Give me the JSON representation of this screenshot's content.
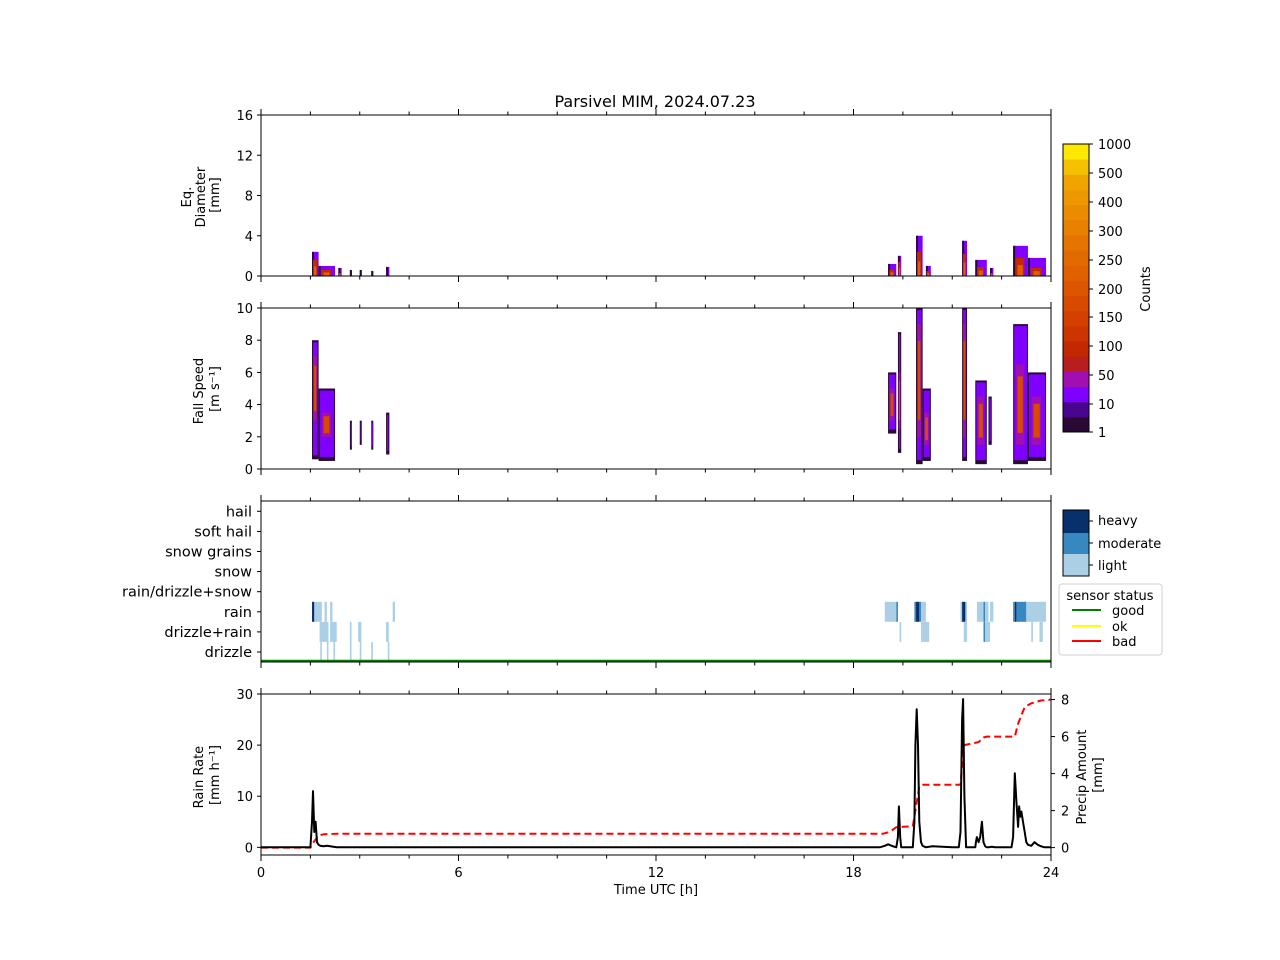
{
  "title": "Parsivel MIM, 2024.07.23",
  "chart_data": [
    {
      "type": "heatmap",
      "panel": "diameter",
      "ylabel": [
        "Eq.",
        "Diameter",
        "[mm]"
      ],
      "ylim": [
        0,
        16
      ],
      "yticks": [
        0,
        4,
        8,
        12,
        16
      ],
      "xlim": [
        0,
        24
      ],
      "events": [
        {
          "t0": 1.55,
          "t1": 1.75,
          "top": 2.4,
          "core": 1.6
        },
        {
          "t0": 1.75,
          "t1": 2.25,
          "top": 1.0,
          "core": 0.6
        },
        {
          "t0": 2.35,
          "t1": 2.45,
          "top": 0.8,
          "core": 0.3
        },
        {
          "t0": 2.7,
          "t1": 2.75,
          "top": 0.6,
          "core": 0
        },
        {
          "t0": 3.0,
          "t1": 3.05,
          "top": 0.6,
          "core": 0
        },
        {
          "t0": 3.35,
          "t1": 3.4,
          "top": 0.5,
          "core": 0
        },
        {
          "t0": 3.8,
          "t1": 3.9,
          "top": 0.9,
          "core": 0
        },
        {
          "t0": 19.05,
          "t1": 19.3,
          "top": 1.2,
          "core": 0.6
        },
        {
          "t0": 19.35,
          "t1": 19.45,
          "top": 2.0,
          "core": 1.4
        },
        {
          "t0": 19.9,
          "t1": 20.1,
          "top": 4.0,
          "core": 2.4
        },
        {
          "t0": 20.2,
          "t1": 20.35,
          "top": 1.0,
          "core": 0.5
        },
        {
          "t0": 21.3,
          "t1": 21.45,
          "top": 3.5,
          "core": 2.2
        },
        {
          "t0": 21.7,
          "t1": 22.05,
          "top": 1.6,
          "core": 0.9
        },
        {
          "t0": 22.15,
          "t1": 22.25,
          "top": 0.8,
          "core": 0.3
        },
        {
          "t0": 22.85,
          "t1": 23.3,
          "top": 3.0,
          "core": 1.8
        },
        {
          "t0": 23.3,
          "t1": 23.85,
          "top": 1.8,
          "core": 0.8
        }
      ]
    },
    {
      "type": "heatmap",
      "panel": "fall_speed",
      "ylabel": [
        "Fall Speed",
        "[m s⁻¹]"
      ],
      "ylim": [
        0,
        10
      ],
      "yticks": [
        0,
        2,
        4,
        6,
        8,
        10
      ],
      "xlim": [
        0,
        24
      ],
      "events": [
        {
          "t0": 1.55,
          "t1": 1.75,
          "lo": 0.6,
          "hi": 8.0,
          "core": [
            3.0,
            7.0
          ]
        },
        {
          "t0": 1.75,
          "t1": 2.25,
          "lo": 0.5,
          "hi": 5.0,
          "core": [
            2.0,
            3.5
          ]
        },
        {
          "t0": 2.7,
          "t1": 2.75,
          "lo": 1.2,
          "hi": 3.0,
          "core": null
        },
        {
          "t0": 3.0,
          "t1": 3.05,
          "lo": 1.5,
          "hi": 3.0,
          "core": null
        },
        {
          "t0": 3.35,
          "t1": 3.4,
          "lo": 1.2,
          "hi": 3.0,
          "core": null
        },
        {
          "t0": 3.8,
          "t1": 3.9,
          "lo": 0.9,
          "hi": 3.5,
          "core": null
        },
        {
          "t0": 19.05,
          "t1": 19.3,
          "lo": 2.2,
          "hi": 6.0,
          "core": [
            3.0,
            5.0
          ]
        },
        {
          "t0": 19.35,
          "t1": 19.45,
          "lo": 1.0,
          "hi": 8.5,
          "core": [
            2.5,
            6.0
          ]
        },
        {
          "t0": 19.9,
          "t1": 20.1,
          "lo": 0.3,
          "hi": 10.0,
          "core": [
            2.0,
            9.0
          ]
        },
        {
          "t0": 20.1,
          "t1": 20.35,
          "lo": 0.5,
          "hi": 5.0,
          "core": [
            1.5,
            3.5
          ]
        },
        {
          "t0": 21.3,
          "t1": 21.45,
          "lo": 0.5,
          "hi": 10.0,
          "core": [
            2.0,
            9.0
          ]
        },
        {
          "t0": 21.7,
          "t1": 22.05,
          "lo": 0.3,
          "hi": 5.5,
          "core": [
            1.5,
            4.5
          ]
        },
        {
          "t0": 22.1,
          "t1": 22.2,
          "lo": 1.5,
          "hi": 4.5,
          "core": null
        },
        {
          "t0": 22.85,
          "t1": 23.3,
          "lo": 0.3,
          "hi": 9.0,
          "core": [
            1.5,
            6.5
          ]
        },
        {
          "t0": 23.3,
          "t1": 23.85,
          "lo": 0.5,
          "hi": 6.0,
          "core": [
            1.5,
            4.5
          ]
        }
      ]
    },
    {
      "type": "heatmap",
      "panel": "precip_type",
      "categories": [
        "drizzle",
        "drizzle+rain",
        "rain",
        "rain/drizzle+snow",
        "snow",
        "snow grains",
        "soft hail",
        "hail"
      ],
      "xlim": [
        0,
        24
      ],
      "intensity_legend": {
        "labels": [
          "heavy",
          "moderate",
          "light"
        ],
        "colors": [
          "#08306b",
          "#3787c0",
          "#abd0e6"
        ]
      },
      "status_legend": {
        "title": "sensor status",
        "items": [
          {
            "label": "good",
            "color": "#008000"
          },
          {
            "label": "ok",
            "color": "#ffff00"
          },
          {
            "label": "bad",
            "color": "#ff0000"
          }
        ]
      },
      "status_line": {
        "status": "good",
        "t0": 0,
        "t1": 24
      },
      "cells": [
        {
          "cat": "rain",
          "t0": 1.55,
          "t1": 1.62,
          "level": "heavy"
        },
        {
          "cat": "rain",
          "t0": 1.62,
          "t1": 1.85,
          "level": "light"
        },
        {
          "cat": "rain",
          "t0": 1.93,
          "t1": 2.0,
          "level": "light"
        },
        {
          "cat": "rain",
          "t0": 2.1,
          "t1": 2.17,
          "level": "light"
        },
        {
          "cat": "rain",
          "t0": 4.0,
          "t1": 4.07,
          "level": "light"
        },
        {
          "cat": "drizzle+rain",
          "t0": 1.78,
          "t1": 2.05,
          "level": "light"
        },
        {
          "cat": "drizzle+rain",
          "t0": 2.1,
          "t1": 2.3,
          "level": "light"
        },
        {
          "cat": "drizzle+rain",
          "t0": 2.7,
          "t1": 2.75,
          "level": "light"
        },
        {
          "cat": "drizzle+rain",
          "t0": 2.95,
          "t1": 3.05,
          "level": "light"
        },
        {
          "cat": "drizzle+rain",
          "t0": 3.8,
          "t1": 3.88,
          "level": "light"
        },
        {
          "cat": "drizzle",
          "t0": 1.8,
          "t1": 1.85,
          "level": "light"
        },
        {
          "cat": "drizzle",
          "t0": 2.0,
          "t1": 2.05,
          "level": "light"
        },
        {
          "cat": "drizzle",
          "t0": 2.2,
          "t1": 2.25,
          "level": "light"
        },
        {
          "cat": "drizzle",
          "t0": 2.7,
          "t1": 2.75,
          "level": "light"
        },
        {
          "cat": "drizzle",
          "t0": 3.0,
          "t1": 3.05,
          "level": "light"
        },
        {
          "cat": "drizzle",
          "t0": 3.35,
          "t1": 3.4,
          "level": "light"
        },
        {
          "cat": "drizzle",
          "t0": 3.85,
          "t1": 3.9,
          "level": "light"
        },
        {
          "cat": "rain",
          "t0": 18.95,
          "t1": 19.3,
          "level": "light"
        },
        {
          "cat": "rain",
          "t0": 19.3,
          "t1": 19.35,
          "level": "moderate"
        },
        {
          "cat": "rain",
          "t0": 19.85,
          "t1": 19.9,
          "level": "moderate"
        },
        {
          "cat": "rain",
          "t0": 19.9,
          "t1": 20.0,
          "level": "heavy"
        },
        {
          "cat": "rain",
          "t0": 20.0,
          "t1": 20.05,
          "level": "moderate"
        },
        {
          "cat": "rain",
          "t0": 20.05,
          "t1": 20.2,
          "level": "light"
        },
        {
          "cat": "rain",
          "t0": 21.25,
          "t1": 21.3,
          "level": "light"
        },
        {
          "cat": "rain",
          "t0": 21.3,
          "t1": 21.4,
          "level": "heavy"
        },
        {
          "cat": "rain",
          "t0": 21.4,
          "t1": 21.45,
          "level": "light"
        },
        {
          "cat": "rain",
          "t0": 21.75,
          "t1": 21.95,
          "level": "light"
        },
        {
          "cat": "rain",
          "t0": 21.95,
          "t1": 22.0,
          "level": "moderate"
        },
        {
          "cat": "rain",
          "t0": 22.0,
          "t1": 22.1,
          "level": "light"
        },
        {
          "cat": "rain",
          "t0": 22.15,
          "t1": 22.25,
          "level": "light"
        },
        {
          "cat": "rain",
          "t0": 22.85,
          "t1": 22.9,
          "level": "moderate"
        },
        {
          "cat": "rain",
          "t0": 22.9,
          "t1": 22.95,
          "level": "heavy"
        },
        {
          "cat": "rain",
          "t0": 22.95,
          "t1": 23.25,
          "level": "moderate"
        },
        {
          "cat": "rain",
          "t0": 23.25,
          "t1": 23.85,
          "level": "light"
        },
        {
          "cat": "drizzle+rain",
          "t0": 19.4,
          "t1": 19.45,
          "level": "light"
        },
        {
          "cat": "drizzle+rain",
          "t0": 20.05,
          "t1": 20.1,
          "level": "light"
        },
        {
          "cat": "drizzle+rain",
          "t0": 20.1,
          "t1": 20.3,
          "level": "light"
        },
        {
          "cat": "drizzle+rain",
          "t0": 21.35,
          "t1": 21.45,
          "level": "light"
        },
        {
          "cat": "drizzle+rain",
          "t0": 21.95,
          "t1": 22.0,
          "level": "moderate"
        },
        {
          "cat": "drizzle+rain",
          "t0": 22.0,
          "t1": 22.15,
          "level": "light"
        },
        {
          "cat": "drizzle+rain",
          "t0": 23.4,
          "t1": 23.45,
          "level": "light"
        },
        {
          "cat": "drizzle+rain",
          "t0": 23.65,
          "t1": 23.75,
          "level": "light"
        }
      ]
    },
    {
      "type": "line",
      "panel": "rain_rate",
      "xlabel": "Time UTC [h]",
      "xlim": [
        0,
        24
      ],
      "xticks": [
        0,
        6,
        12,
        18,
        24
      ],
      "ylabel": [
        "Rain Rate",
        "[mm h⁻¹]"
      ],
      "ylim": [
        -1.5,
        30
      ],
      "yticks": [
        0,
        10,
        20,
        30
      ],
      "y2label": [
        "Precip Amount",
        "[mm]"
      ],
      "y2lim": [
        -0.4,
        8.3
      ],
      "y2ticks": [
        0,
        2,
        4,
        6,
        8
      ],
      "series": [
        {
          "name": "Rain Rate",
          "axis": "left",
          "color": "#000000",
          "style": "solid",
          "x": [
            0,
            1.5,
            1.55,
            1.58,
            1.62,
            1.66,
            1.7,
            1.75,
            1.8,
            1.9,
            2.0,
            2.1,
            2.2,
            2.3,
            2.5,
            18.8,
            18.95,
            19.05,
            19.2,
            19.3,
            19.35,
            19.38,
            19.42,
            19.45,
            19.5,
            19.8,
            19.85,
            19.88,
            19.92,
            19.96,
            20.0,
            20.05,
            20.1,
            20.2,
            20.4,
            21.0,
            21.2,
            21.25,
            21.3,
            21.33,
            21.37,
            21.42,
            21.5,
            21.7,
            21.72,
            21.75,
            21.8,
            21.85,
            21.9,
            21.95,
            22.0,
            22.05,
            22.1,
            22.2,
            22.3,
            22.8,
            22.85,
            22.9,
            22.95,
            23.0,
            23.03,
            23.07,
            23.1,
            23.15,
            23.2,
            23.25,
            23.3,
            23.4,
            23.5,
            23.6,
            23.7,
            23.8,
            24.0
          ],
          "values": [
            0,
            0,
            5,
            11,
            3,
            5,
            1,
            0.5,
            0.3,
            0.2,
            0.3,
            0.2,
            0.1,
            0,
            0,
            0,
            0.3,
            0.6,
            0.2,
            0,
            2,
            8,
            2,
            0,
            0,
            0,
            5,
            20,
            27,
            20,
            5,
            1,
            0.3,
            0,
            0.2,
            0,
            0,
            3,
            25,
            29,
            10,
            0,
            0,
            0,
            1,
            2,
            1,
            2,
            5,
            1,
            0.2,
            0,
            0,
            0.1,
            0,
            0,
            2,
            14.5,
            9,
            4,
            8,
            6,
            7,
            5,
            3,
            1,
            0.5,
            0.3,
            1,
            0.5,
            0.2,
            0,
            0
          ]
        },
        {
          "name": "Precip Amount",
          "axis": "right",
          "color": "#ff0000",
          "style": "dashed",
          "x": [
            0,
            1.5,
            1.6,
            1.75,
            1.9,
            2.3,
            3.0,
            18.9,
            19.1,
            19.3,
            19.8,
            19.9,
            20.0,
            20.1,
            21.25,
            21.35,
            21.4,
            21.8,
            21.95,
            22.05,
            22.9,
            23.0,
            23.2,
            23.4,
            23.7,
            24.0
          ],
          "values": [
            0,
            0,
            0.3,
            0.65,
            0.72,
            0.75,
            0.75,
            0.75,
            0.85,
            1.1,
            1.15,
            2.2,
            3.3,
            3.4,
            3.4,
            5.5,
            5.55,
            5.7,
            5.95,
            6.0,
            6.0,
            6.7,
            7.6,
            7.8,
            7.95,
            8.0
          ]
        }
      ]
    }
  ],
  "colorbar": {
    "label": "Counts",
    "ticks": [
      "1",
      "10",
      "50",
      "100",
      "150",
      "200",
      "250",
      "300",
      "400",
      "500",
      "1000"
    ],
    "colors": [
      "#2a0a35",
      "#4a0590",
      "#8000ff",
      "#a010b0",
      "#b81e1e",
      "#c42800",
      "#cc3500",
      "#d44000",
      "#d84a00",
      "#de5500",
      "#e06000",
      "#e26a00",
      "#e57500",
      "#e88000",
      "#eb8c00",
      "#ee9800",
      "#f0a400",
      "#f5c000",
      "#fce800"
    ]
  }
}
